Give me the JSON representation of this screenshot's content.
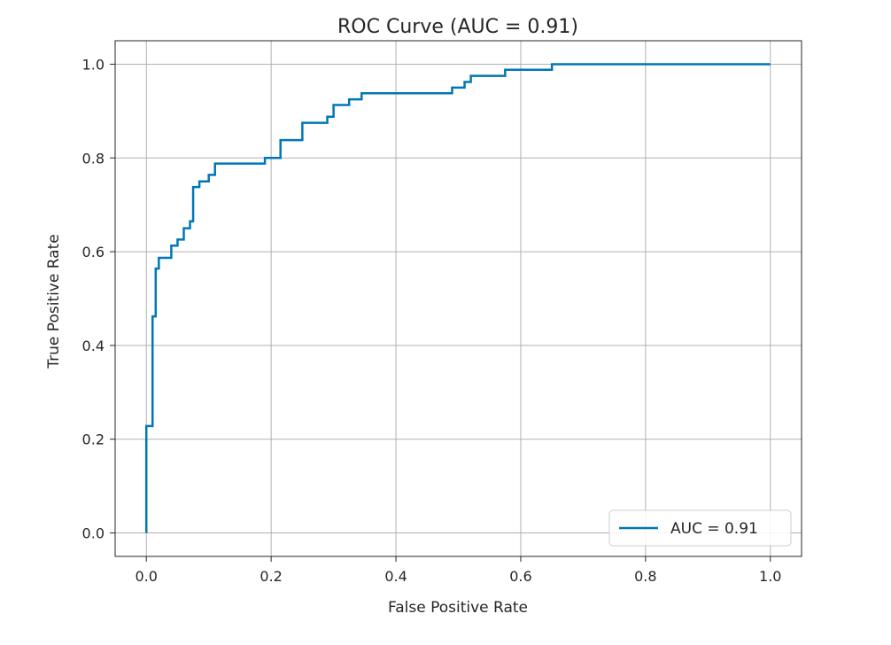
{
  "chart_data": {
    "type": "line",
    "title": "ROC Curve (AUC = 0.91)",
    "xlabel": "False Positive Rate",
    "ylabel": "True Positive Rate",
    "xlim": [
      -0.05,
      1.05
    ],
    "ylim": [
      -0.05,
      1.05
    ],
    "xticks": [
      0.0,
      0.2,
      0.4,
      0.6,
      0.8,
      1.0
    ],
    "yticks": [
      0.0,
      0.2,
      0.4,
      0.6,
      0.8,
      1.0
    ],
    "xtick_labels": [
      "0.0",
      "0.2",
      "0.4",
      "0.6",
      "0.8",
      "1.0"
    ],
    "ytick_labels": [
      "0.0",
      "0.2",
      "0.4",
      "0.6",
      "0.8",
      "1.0"
    ],
    "grid": true,
    "legend_position": "lower-right",
    "series": [
      {
        "name": "AUC = 0.91",
        "color": "#0077b6",
        "x": [
          0.0,
          0.0,
          0.0,
          0.01,
          0.01,
          0.01,
          0.015,
          0.015,
          0.02,
          0.02,
          0.035,
          0.035,
          0.04,
          0.04,
          0.05,
          0.05,
          0.06,
          0.06,
          0.07,
          0.07,
          0.075,
          0.075,
          0.085,
          0.085,
          0.1,
          0.1,
          0.11,
          0.11,
          0.19,
          0.19,
          0.215,
          0.215,
          0.25,
          0.25,
          0.29,
          0.29,
          0.3,
          0.3,
          0.325,
          0.325,
          0.345,
          0.345,
          0.49,
          0.49,
          0.51,
          0.51,
          0.52,
          0.52,
          0.525,
          0.525,
          0.575,
          0.575,
          0.65,
          0.65,
          1.0
        ],
        "y": [
          0.0,
          0.0,
          0.228,
          0.228,
          0.462,
          0.462,
          0.462,
          0.564,
          0.564,
          0.587,
          0.587,
          0.587,
          0.587,
          0.613,
          0.613,
          0.626,
          0.626,
          0.65,
          0.65,
          0.665,
          0.665,
          0.738,
          0.738,
          0.75,
          0.75,
          0.764,
          0.764,
          0.788,
          0.788,
          0.8,
          0.8,
          0.838,
          0.838,
          0.875,
          0.875,
          0.888,
          0.888,
          0.913,
          0.913,
          0.925,
          0.925,
          0.938,
          0.938,
          0.95,
          0.95,
          0.962,
          0.962,
          0.975,
          0.975,
          0.975,
          0.975,
          0.988,
          0.988,
          1.0,
          1.0
        ]
      }
    ]
  }
}
